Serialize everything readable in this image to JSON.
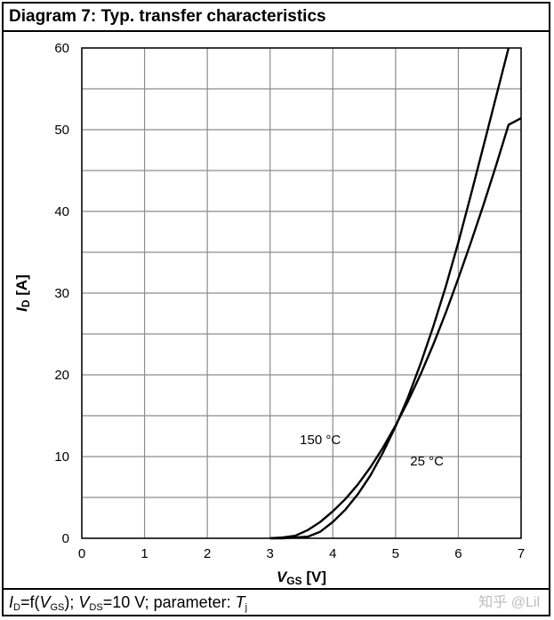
{
  "title": "Diagram 7: Typ. transfer characteristics",
  "footer": {
    "id": "I",
    "id_sub": "D",
    "eq1": "=f(",
    "vgs": "V",
    "vgs_sub": "GS",
    "sep": "); ",
    "vds": "V",
    "vds_sub": "DS",
    "eq2": "=10 V; parameter: ",
    "tj": "T",
    "tj_sub": "j"
  },
  "watermark": "知乎 @Lil",
  "chart_data": {
    "type": "line",
    "xlabel_main": "V",
    "xlabel_sub": "GS",
    "xlabel_unit": " [V]",
    "ylabel_main": "I",
    "ylabel_sub": "D",
    "ylabel_unit": " [A]",
    "xlim": [
      0,
      7
    ],
    "ylim": [
      0,
      60
    ],
    "xticks": [
      0,
      1,
      2,
      3,
      4,
      5,
      6,
      7
    ],
    "yticks": [
      0,
      10,
      20,
      30,
      40,
      50,
      60
    ],
    "grid": true,
    "series": [
      {
        "name": "25 °C",
        "x": [
          3.0,
          3.2,
          3.4,
          3.6,
          3.8,
          4.0,
          4.2,
          4.4,
          4.6,
          4.8,
          5.0,
          5.2,
          5.4,
          5.6,
          5.8,
          6.0,
          6.2,
          6.4,
          6.6,
          6.8
        ],
        "y": [
          0.0,
          0.0,
          0.1,
          0.2,
          0.8,
          2.0,
          3.5,
          5.4,
          7.7,
          10.5,
          13.7,
          17.3,
          21.4,
          25.9,
          30.8,
          36.2,
          42.0,
          48.0,
          54.0,
          60.0
        ]
      },
      {
        "name": "150 °C",
        "x": [
          3.0,
          3.2,
          3.4,
          3.6,
          3.8,
          4.0,
          4.2,
          4.4,
          4.6,
          4.8,
          5.0,
          5.2,
          5.4,
          5.6,
          5.8,
          6.0,
          6.2,
          6.4,
          6.6,
          6.8,
          7.0
        ],
        "y": [
          0.0,
          0.1,
          0.3,
          1.0,
          2.0,
          3.3,
          4.8,
          6.6,
          8.7,
          11.1,
          13.8,
          16.8,
          20.1,
          23.7,
          27.6,
          31.8,
          36.2,
          40.8,
          45.6,
          50.6,
          51.4
        ]
      }
    ],
    "annotations": [
      {
        "text": "150 °C",
        "x": 3.8,
        "y": 11.5
      },
      {
        "text": "25 °C",
        "x": 5.5,
        "y": 8.9
      }
    ]
  }
}
